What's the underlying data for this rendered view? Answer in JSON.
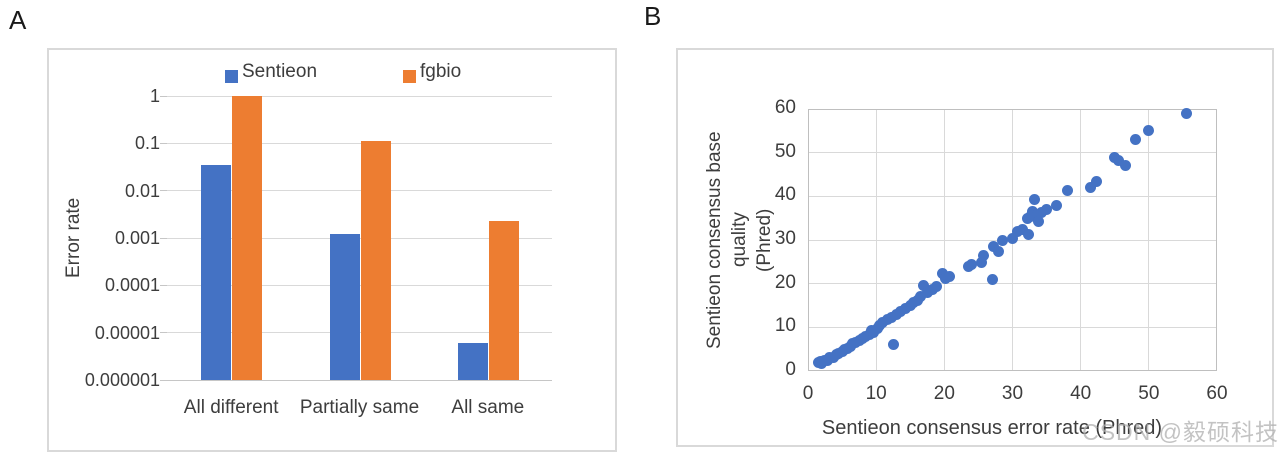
{
  "panels": {
    "a_label": "A",
    "b_label": "B"
  },
  "watermark": {
    "text": "CSDN @毅硕科技",
    "color": "#b0b0b0"
  },
  "chart_data": [
    {
      "id": "panel-A",
      "type": "bar",
      "panel_label": "A",
      "ylabel": "Error rate",
      "yscale": "log",
      "ylim": [
        1e-06,
        1
      ],
      "yticks": [
        "1",
        "0.1",
        "0.01",
        "0.001",
        "0.0001",
        "0.00001",
        "0.000001"
      ],
      "categories": [
        "All different",
        "Partially same",
        "All same"
      ],
      "series": [
        {
          "name": "Sentieon",
          "color": "#4472C4",
          "values": [
            0.035,
            0.0012,
            6e-06
          ]
        },
        {
          "name": "fgbio",
          "color": "#ED7D31",
          "values": [
            1.0,
            0.11,
            0.0023
          ]
        }
      ],
      "legend_position": "top",
      "grid": "horizontal",
      "grid_color": "#d9d9d9"
    },
    {
      "id": "panel-B",
      "type": "scatter",
      "panel_label": "B",
      "xlabel": "Sentieon consensus error rate (Phred)",
      "ylabel_line1": "Sentieon consensus base quality",
      "ylabel_line2": "(Phred)",
      "xlim": [
        0,
        60
      ],
      "ylim": [
        0,
        60
      ],
      "xticks": [
        0,
        10,
        20,
        30,
        40,
        50,
        60
      ],
      "yticks": [
        0,
        10,
        20,
        30,
        40,
        50,
        60
      ],
      "marker_color": "#4472C4",
      "grid": "both",
      "grid_color": "#d9d9d9",
      "points": [
        [
          1.5,
          2
        ],
        [
          1.8,
          2.2
        ],
        [
          2,
          1.8
        ],
        [
          2.4,
          2.3
        ],
        [
          2.9,
          2.5
        ],
        [
          3.2,
          3
        ],
        [
          3.7,
          3.2
        ],
        [
          4.2,
          3.7
        ],
        [
          4.5,
          4.1
        ],
        [
          5,
          4.5
        ],
        [
          5.3,
          5
        ],
        [
          5.8,
          5.2
        ],
        [
          6.2,
          5.7
        ],
        [
          6.6,
          6.2
        ],
        [
          7,
          6.6
        ],
        [
          7.5,
          7
        ],
        [
          8,
          7.5
        ],
        [
          8.5,
          8
        ],
        [
          9,
          8.4
        ],
        [
          9.3,
          9.3
        ],
        [
          9.6,
          8.9
        ],
        [
          10.2,
          9.8
        ],
        [
          10.5,
          10.4
        ],
        [
          11,
          11
        ],
        [
          11.6,
          11.7
        ],
        [
          12.2,
          12.2
        ],
        [
          12.5,
          6
        ],
        [
          13,
          12.9
        ],
        [
          13.6,
          13.6
        ],
        [
          14.3,
          14.3
        ],
        [
          15,
          14.9
        ],
        [
          15.5,
          15.6
        ],
        [
          16,
          16.2
        ],
        [
          16.5,
          17
        ],
        [
          17,
          19.5
        ],
        [
          17.6,
          17.9
        ],
        [
          18.2,
          18.6
        ],
        [
          18.8,
          19.4
        ],
        [
          19.8,
          22.3
        ],
        [
          20.2,
          21.2
        ],
        [
          20.7,
          21.7
        ],
        [
          23.5,
          24
        ],
        [
          24,
          24.4
        ],
        [
          25.4,
          24.9
        ],
        [
          25.8,
          26.5
        ],
        [
          27,
          21
        ],
        [
          27.2,
          28.4
        ],
        [
          28,
          27.3
        ],
        [
          28.5,
          30
        ],
        [
          30,
          30.3
        ],
        [
          30.7,
          31.9
        ],
        [
          31.5,
          32.3
        ],
        [
          32.2,
          34.9
        ],
        [
          32.4,
          31.2
        ],
        [
          32.7,
          35.3
        ],
        [
          33,
          36.5
        ],
        [
          33.3,
          39.3
        ],
        [
          33.6,
          35.8
        ],
        [
          33.8,
          34.2
        ],
        [
          34.2,
          36.3
        ],
        [
          35,
          37
        ],
        [
          36.5,
          38
        ],
        [
          38,
          41.3
        ],
        [
          41.5,
          42
        ],
        [
          42.3,
          43.5
        ],
        [
          45,
          49
        ],
        [
          45.6,
          48.2
        ],
        [
          46.6,
          47
        ],
        [
          48,
          53
        ],
        [
          50,
          55
        ],
        [
          55.5,
          59
        ]
      ]
    }
  ]
}
